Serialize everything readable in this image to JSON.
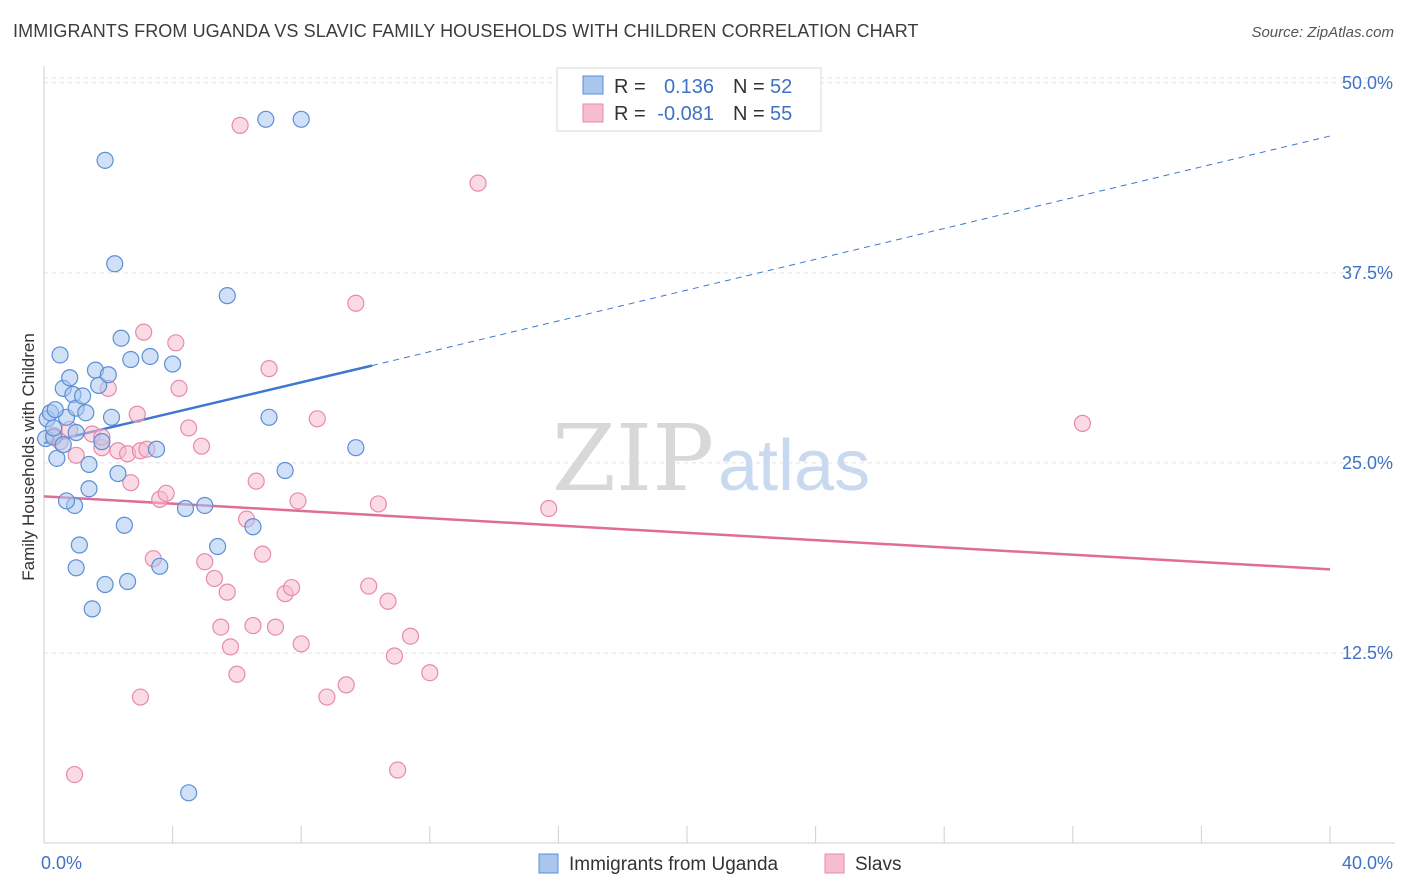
{
  "title": "IMMIGRANTS FROM UGANDA VS SLAVIC FAMILY HOUSEHOLDS WITH CHILDREN CORRELATION CHART",
  "source": "Source: ZipAtlas.com",
  "watermark": {
    "zip": "ZIP",
    "atlas": "atlas"
  },
  "colors": {
    "blue_fill": "#a9c6ee",
    "blue_stroke": "#5b8fd6",
    "blue_line": "#3e77d0",
    "pink_fill": "#f6bcd0",
    "pink_stroke": "#e88aaa",
    "pink_line": "#e06c98",
    "grid": "#e2e2e2",
    "axis_label": "#3f72c4"
  },
  "legend": {
    "rows": [
      {
        "r_label": "R =",
        "r_value": "0.136",
        "n_label": "N =",
        "n_value": "52"
      },
      {
        "r_label": "R =",
        "r_value": "-0.081",
        "n_label": "N =",
        "n_value": "55"
      }
    ]
  },
  "chart_data": {
    "type": "scatter",
    "title": "IMMIGRANTS FROM UGANDA VS SLAVIC FAMILY HOUSEHOLDS WITH CHILDREN CORRELATION CHART",
    "xlabel": "",
    "ylabel": "Family Households with Children",
    "xlim": [
      0,
      40
    ],
    "ylim": [
      0,
      51.5
    ],
    "x_tick_labels": [
      {
        "value": 0,
        "label": "0.0%"
      },
      {
        "value": 40,
        "label": "40.0%"
      }
    ],
    "y_tick_labels": [
      {
        "value": 12.5,
        "label": "12.5%"
      },
      {
        "value": 25.0,
        "label": "25.0%"
      },
      {
        "value": 37.5,
        "label": "37.5%"
      },
      {
        "value": 50.0,
        "label": "50.0%"
      }
    ],
    "series": [
      {
        "name": "Immigrants from Uganda",
        "color": "blue",
        "trend": {
          "x0": 0,
          "y0": 26.3,
          "x1_solid": 10.2,
          "y1_solid": 31.4,
          "x1": 40,
          "y1": 46.5
        },
        "points": [
          [
            0.05,
            26.6
          ],
          [
            0.1,
            27.9
          ],
          [
            0.2,
            28.3
          ],
          [
            0.3,
            26.7
          ],
          [
            0.4,
            25.3
          ],
          [
            0.5,
            32.1
          ],
          [
            0.6,
            29.9
          ],
          [
            0.7,
            28.0
          ],
          [
            0.8,
            30.6
          ],
          [
            0.9,
            29.5
          ],
          [
            0.95,
            22.2
          ],
          [
            1.0,
            27.0
          ],
          [
            1.0,
            28.6
          ],
          [
            1.0,
            18.1
          ],
          [
            1.1,
            19.6
          ],
          [
            1.2,
            29.4
          ],
          [
            1.3,
            28.3
          ],
          [
            1.4,
            23.3
          ],
          [
            1.4,
            24.9
          ],
          [
            1.5,
            15.4
          ],
          [
            1.6,
            31.1
          ],
          [
            1.7,
            30.1
          ],
          [
            1.8,
            26.4
          ],
          [
            1.9,
            17.0
          ],
          [
            1.9,
            44.9
          ],
          [
            2.0,
            30.8
          ],
          [
            2.1,
            28.0
          ],
          [
            2.2,
            38.1
          ],
          [
            2.3,
            24.3
          ],
          [
            2.4,
            33.2
          ],
          [
            2.5,
            20.9
          ],
          [
            2.6,
            17.2
          ],
          [
            2.7,
            31.8
          ],
          [
            3.3,
            32.0
          ],
          [
            3.5,
            25.9
          ],
          [
            3.6,
            18.2
          ],
          [
            4.0,
            31.5
          ],
          [
            4.4,
            22.0
          ],
          [
            4.5,
            3.3
          ],
          [
            5.0,
            22.2
          ],
          [
            5.4,
            19.5
          ],
          [
            5.7,
            36.0
          ],
          [
            6.5,
            20.8
          ],
          [
            6.9,
            47.6
          ],
          [
            7.0,
            28.0
          ],
          [
            7.5,
            24.5
          ],
          [
            8.0,
            47.6
          ],
          [
            9.7,
            26.0
          ],
          [
            0.3,
            27.3
          ],
          [
            0.6,
            26.2
          ],
          [
            0.7,
            22.5
          ],
          [
            0.35,
            28.5
          ]
        ]
      },
      {
        "name": "Slavs",
        "color": "pink",
        "trend": {
          "x0": 0,
          "y0": 22.8,
          "x1": 40,
          "y1": 18.0
        },
        "points": [
          [
            0.3,
            26.8
          ],
          [
            0.5,
            26.4
          ],
          [
            0.8,
            27.2
          ],
          [
            1.0,
            25.5
          ],
          [
            1.5,
            26.9
          ],
          [
            1.8,
            26.0
          ],
          [
            2.0,
            29.9
          ],
          [
            2.3,
            25.8
          ],
          [
            2.6,
            25.6
          ],
          [
            2.7,
            23.7
          ],
          [
            2.9,
            28.2
          ],
          [
            3.0,
            25.8
          ],
          [
            3.1,
            33.6
          ],
          [
            3.2,
            25.9
          ],
          [
            3.4,
            18.7
          ],
          [
            3.6,
            22.6
          ],
          [
            3.8,
            23.0
          ],
          [
            4.1,
            32.9
          ],
          [
            4.2,
            29.9
          ],
          [
            4.5,
            27.3
          ],
          [
            4.9,
            26.1
          ],
          [
            5.0,
            18.5
          ],
          [
            5.3,
            17.4
          ],
          [
            5.5,
            14.2
          ],
          [
            5.7,
            16.5
          ],
          [
            5.8,
            12.9
          ],
          [
            6.0,
            11.1
          ],
          [
            6.3,
            21.3
          ],
          [
            6.5,
            14.3
          ],
          [
            6.6,
            23.8
          ],
          [
            6.8,
            19.0
          ],
          [
            7.0,
            31.2
          ],
          [
            7.2,
            14.2
          ],
          [
            7.5,
            16.4
          ],
          [
            7.7,
            16.8
          ],
          [
            7.9,
            22.5
          ],
          [
            8.0,
            13.1
          ],
          [
            8.5,
            27.9
          ],
          [
            8.8,
            9.6
          ],
          [
            9.4,
            10.4
          ],
          [
            9.7,
            35.5
          ],
          [
            10.1,
            16.9
          ],
          [
            10.4,
            22.3
          ],
          [
            10.7,
            15.9
          ],
          [
            10.9,
            12.3
          ],
          [
            11.0,
            4.8
          ],
          [
            11.4,
            13.6
          ],
          [
            12.0,
            11.2
          ],
          [
            13.5,
            43.4
          ],
          [
            15.7,
            22.0
          ],
          [
            32.3,
            27.6
          ],
          [
            0.95,
            4.5
          ],
          [
            3.0,
            9.6
          ],
          [
            6.1,
            47.2
          ],
          [
            1.8,
            26.7
          ]
        ]
      }
    ]
  },
  "bottom_legend": [
    {
      "label": "Immigrants from Uganda",
      "color": "blue"
    },
    {
      "label": "Slavs",
      "color": "pink"
    }
  ]
}
